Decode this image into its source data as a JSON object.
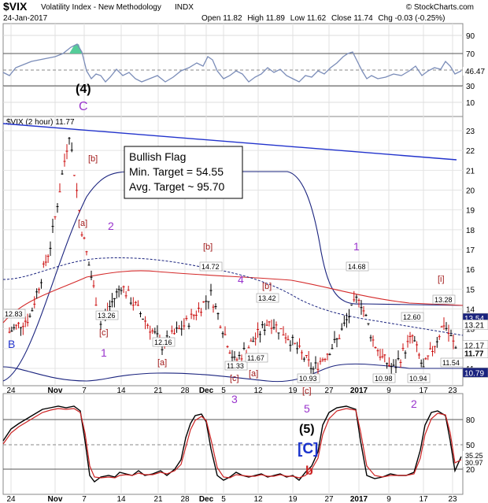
{
  "header": {
    "ticker": "$VIX",
    "name": "Volatility Index - New Methodology",
    "exchange": "INDX",
    "date": "24-Jan-2017",
    "open_label": "Open",
    "open": "11.82",
    "high_label": "High",
    "high": "11.89",
    "low_label": "Low",
    "low": "11.62",
    "close_label": "Close",
    "close": "11.74",
    "chg_label": "Chg",
    "chg": "-0.03 (-0.25%)",
    "credit": "© StockCharts.com"
  },
  "panels": {
    "rsi": {
      "yticks": [
        "90",
        "70",
        "50",
        "30",
        "10"
      ],
      "last_value": "46.47",
      "wave_labels": [
        "(4)",
        "C"
      ]
    },
    "price": {
      "legend": "$VIX (2 hour) 11.77",
      "yticks": [
        "23",
        "22",
        "21",
        "20",
        "19",
        "18",
        "17",
        "16",
        "15",
        "14",
        "13",
        "12",
        "11"
      ],
      "right_tags": [
        "13.54",
        "13.21",
        "12.17",
        "11.77",
        "10.79"
      ],
      "annotation": {
        "line1": "Bullish Flag",
        "line2": "Min. Target = 54.55",
        "line3": "Avg. Target ~ 95.70"
      }
    },
    "stoch": {
      "yticks": [
        "80",
        "50",
        "20"
      ],
      "right_tags": [
        "35.25",
        "30.97"
      ],
      "wave_labels": [
        "(5)",
        "[C]",
        "b"
      ]
    }
  },
  "xaxis": {
    "ticks": [
      "24",
      "Nov",
      "7",
      "14",
      "21",
      "28",
      "Dec",
      "5",
      "12",
      "19",
      "27",
      "2017",
      "9",
      "17",
      "23"
    ]
  },
  "chart_data": {
    "type": "line",
    "title": "$VIX Volatility Index - New Methodology (2 hour)",
    "series": [
      {
        "name": "$VIX (2 hour)",
        "x": [
          "Oct 24",
          "Oct 27",
          "Nov 1",
          "Nov 3",
          "Nov 7",
          "Nov 9",
          "Nov 14",
          "Nov 21",
          "Nov 28",
          "Dec 2",
          "Dec 5",
          "Dec 9",
          "Dec 12",
          "Dec 14",
          "Dec 19",
          "Dec 27",
          "Dec 30",
          "Jan 3",
          "Jan 6",
          "Jan 9",
          "Jan 12",
          "Jan 17",
          "Jan 19",
          "Jan 24"
        ],
        "values": [
          12.83,
          13.6,
          17.2,
          22.9,
          18.0,
          13.26,
          15.2,
          12.16,
          13.4,
          14.72,
          11.33,
          12.1,
          13.42,
          12.6,
          10.93,
          12.4,
          14.68,
          12.4,
          11.5,
          10.98,
          12.6,
          10.94,
          13.28,
          11.77
        ]
      }
    ],
    "annotated_values": [
      "12.83",
      "13.26",
      "12.16",
      "14.72",
      "11.33",
      "11.67",
      "13.42",
      "10.93",
      "14.68",
      "10.98",
      "12.60",
      "10.94",
      "13.28",
      "11.54"
    ],
    "wave_labels": [
      "B",
      "1",
      "2",
      "[a]",
      "[b]",
      "[c]",
      "[a]",
      "[b]",
      "[c]",
      "[a]",
      "[b]",
      "[c]",
      "3",
      "4",
      "5",
      "1",
      "2",
      "[i]"
    ],
    "ylim": [
      10.6,
      23.8
    ]
  }
}
